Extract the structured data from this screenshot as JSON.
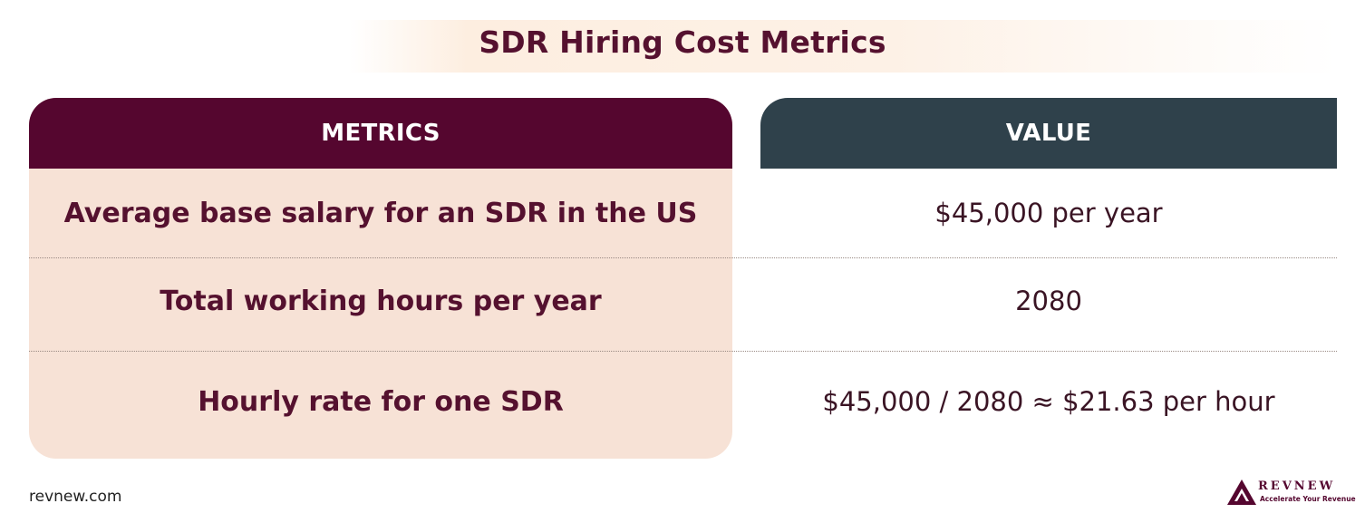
{
  "title": "SDR Hiring Cost Metrics",
  "table": {
    "headers": {
      "metrics": "METRICS",
      "value": "VALUE"
    },
    "rows": [
      {
        "metric": "Average base salary for an SDR in the US",
        "value": "$45,000 per year"
      },
      {
        "metric": "Total working hours per year",
        "value": "2080"
      },
      {
        "metric": "Hourly rate for one SDR",
        "value": "$45,000 / 2080 ≈ $21.63 per hour"
      }
    ]
  },
  "footer": {
    "url": "revnew.com",
    "logo": {
      "name": "REVNEW",
      "tagline": "Accelerate Your Revenue",
      "icon": "mountain-logo-icon"
    }
  },
  "colors": {
    "metrics_header": "#55062f",
    "value_header": "#2f414b",
    "metrics_body": "#f7e2d6",
    "text_primary": "#55112f"
  }
}
